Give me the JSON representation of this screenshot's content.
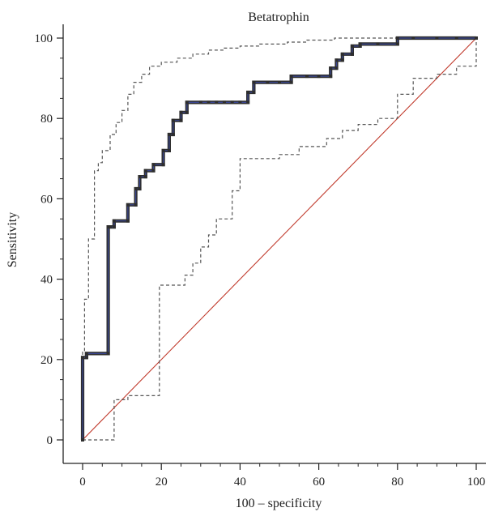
{
  "chart_data": {
    "type": "line",
    "title": "Betatrophin",
    "xlabel": "100 – specificity",
    "ylabel": "Sensitivity",
    "xlim": [
      -5,
      102
    ],
    "ylim": [
      -5,
      102
    ],
    "x_ticks": [
      0,
      20,
      40,
      60,
      80,
      100
    ],
    "y_ticks": [
      0,
      20,
      40,
      60,
      80,
      100
    ],
    "x_minor_step": 5,
    "y_minor_step": 5,
    "grid": false,
    "series": [
      {
        "role": "roc-curve",
        "style": "solid-thick",
        "color": "#2e2e2e",
        "accent_color": "#3b4aa3",
        "x": [
          0,
          0,
          1,
          1,
          6.5,
          6.5,
          7,
          8,
          8,
          11.5,
          11.5,
          13.5,
          13.5,
          14.5,
          14.5,
          16,
          16,
          18,
          18,
          20.5,
          20.5,
          22,
          22,
          23,
          23,
          25,
          25,
          26.5,
          26.5,
          30,
          32,
          34,
          36,
          38,
          40,
          42,
          42,
          43.5,
          43.5,
          47,
          50,
          53,
          53,
          57,
          60,
          63,
          63,
          64.5,
          64.5,
          66,
          66,
          68.5,
          68.5,
          70.5,
          70.5,
          75,
          80,
          80,
          84,
          90,
          95,
          100
        ],
        "y": [
          0,
          20.5,
          20.5,
          21.5,
          21.5,
          53,
          53,
          53,
          54.5,
          54.5,
          58.5,
          58.5,
          62.5,
          62.5,
          65.5,
          65.5,
          67,
          67,
          68.5,
          68.5,
          72,
          72,
          76,
          76,
          79.5,
          79.5,
          81.5,
          81.5,
          84,
          84,
          84,
          84,
          84,
          84,
          84,
          84,
          86.5,
          86.5,
          89,
          89,
          89,
          89,
          90.5,
          90.5,
          90.5,
          90.5,
          92.5,
          92.5,
          94.5,
          94.5,
          96,
          96,
          98,
          98,
          98.5,
          98.5,
          98.5,
          100,
          100,
          100,
          100,
          100
        ]
      },
      {
        "role": "upper-confidence-bound",
        "style": "dashed",
        "color": "#555555",
        "x": [
          0,
          0,
          0.5,
          0.5,
          1.5,
          1.5,
          3,
          3,
          4,
          4,
          5,
          5,
          7,
          7,
          8.5,
          8.5,
          10,
          10,
          11.5,
          11.5,
          13,
          13,
          15,
          15,
          17,
          17,
          20,
          20,
          24,
          24,
          28,
          28,
          32,
          32,
          36,
          36,
          40,
          40,
          45,
          45,
          52,
          52,
          57,
          57,
          64,
          64,
          70,
          70,
          80,
          80,
          100
        ],
        "y": [
          0,
          22,
          22,
          35,
          35,
          50,
          50,
          67,
          67,
          69,
          69,
          72,
          72,
          76,
          76,
          79,
          79,
          82,
          82,
          86,
          86,
          89,
          89,
          91,
          91,
          93,
          93,
          94,
          94,
          95,
          95,
          96,
          96,
          97,
          97,
          97.5,
          97.5,
          98,
          98,
          98.5,
          98.5,
          99,
          99,
          99.5,
          99.5,
          100,
          100,
          100,
          100,
          100,
          100
        ]
      },
      {
        "role": "lower-confidence-bound",
        "style": "dashed",
        "color": "#555555",
        "x": [
          0,
          0,
          2,
          8,
          8,
          11.5,
          11.5,
          19.5,
          19.5,
          26,
          26,
          28,
          28,
          30,
          30,
          32,
          32,
          34,
          34,
          38,
          38,
          40,
          40,
          50,
          50,
          55,
          55,
          62,
          62,
          66,
          66,
          70,
          70,
          75,
          75,
          80,
          80,
          84,
          84,
          90,
          90,
          95,
          95,
          100,
          100
        ],
        "y": [
          0,
          0,
          0,
          0,
          10,
          10,
          11,
          11,
          38.5,
          38.5,
          41,
          41,
          44,
          44,
          48,
          48,
          51,
          51,
          55,
          55,
          62,
          62,
          70,
          70,
          71,
          71,
          73,
          73,
          75,
          75,
          77,
          77,
          78.5,
          78.5,
          80,
          80,
          86,
          86,
          90,
          90,
          91,
          91,
          93,
          93,
          100
        ]
      },
      {
        "role": "reference-line",
        "style": "solid-thin",
        "color": "#c0392b",
        "x": [
          0,
          100
        ],
        "y": [
          0,
          100
        ]
      }
    ]
  }
}
